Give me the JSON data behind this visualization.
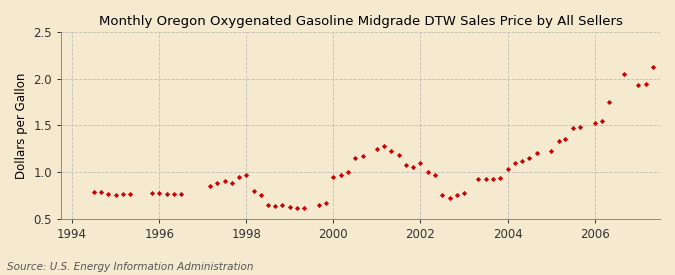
{
  "title": "Monthly Oregon Oxygenated Gasoline Midgrade DTW Sales Price by All Sellers",
  "ylabel": "Dollars per Gallon",
  "source": "Source: U.S. Energy Information Administration",
  "xlim": [
    1993.75,
    2007.5
  ],
  "ylim": [
    0.5,
    2.5
  ],
  "yticks": [
    0.5,
    1.0,
    1.5,
    2.0,
    2.5
  ],
  "xticks": [
    1994,
    1996,
    1998,
    2000,
    2002,
    2004,
    2006
  ],
  "background_color": "#f5e9d0",
  "plot_bg_color": "#f5e9d0",
  "marker_color": "#cc0000",
  "grid_color": "#aaaaaa",
  "data_points": [
    [
      1994.5,
      0.79
    ],
    [
      1994.67,
      0.79
    ],
    [
      1994.83,
      0.77
    ],
    [
      1995.0,
      0.75
    ],
    [
      1995.17,
      0.76
    ],
    [
      1995.33,
      0.77
    ],
    [
      1995.83,
      0.78
    ],
    [
      1996.0,
      0.78
    ],
    [
      1996.17,
      0.77
    ],
    [
      1996.33,
      0.76
    ],
    [
      1996.5,
      0.76
    ],
    [
      1997.17,
      0.85
    ],
    [
      1997.33,
      0.88
    ],
    [
      1997.5,
      0.9
    ],
    [
      1997.67,
      0.88
    ],
    [
      1997.83,
      0.95
    ],
    [
      1998.0,
      0.97
    ],
    [
      1998.17,
      0.8
    ],
    [
      1998.33,
      0.75
    ],
    [
      1998.5,
      0.65
    ],
    [
      1998.67,
      0.64
    ],
    [
      1998.83,
      0.65
    ],
    [
      1999.0,
      0.63
    ],
    [
      1999.17,
      0.62
    ],
    [
      1999.33,
      0.61
    ],
    [
      1999.67,
      0.65
    ],
    [
      1999.83,
      0.67
    ],
    [
      2000.0,
      0.95
    ],
    [
      2000.17,
      0.97
    ],
    [
      2000.33,
      1.0
    ],
    [
      2000.5,
      1.15
    ],
    [
      2000.67,
      1.17
    ],
    [
      2001.0,
      1.25
    ],
    [
      2001.17,
      1.28
    ],
    [
      2001.33,
      1.22
    ],
    [
      2001.5,
      1.18
    ],
    [
      2001.67,
      1.08
    ],
    [
      2001.83,
      1.05
    ],
    [
      2002.0,
      1.1
    ],
    [
      2002.17,
      1.0
    ],
    [
      2002.33,
      0.97
    ],
    [
      2002.5,
      0.75
    ],
    [
      2002.67,
      0.72
    ],
    [
      2002.83,
      0.75
    ],
    [
      2003.0,
      0.78
    ],
    [
      2003.33,
      0.92
    ],
    [
      2003.5,
      0.93
    ],
    [
      2003.67,
      0.93
    ],
    [
      2003.83,
      0.94
    ],
    [
      2004.0,
      1.03
    ],
    [
      2004.17,
      1.1
    ],
    [
      2004.33,
      1.12
    ],
    [
      2004.5,
      1.15
    ],
    [
      2004.67,
      1.2
    ],
    [
      2005.0,
      1.22
    ],
    [
      2005.17,
      1.33
    ],
    [
      2005.33,
      1.35
    ],
    [
      2005.5,
      1.47
    ],
    [
      2005.67,
      1.48
    ],
    [
      2006.0,
      1.53
    ],
    [
      2006.17,
      1.55
    ],
    [
      2006.33,
      1.75
    ],
    [
      2006.67,
      2.05
    ],
    [
      2007.0,
      1.93
    ],
    [
      2007.17,
      1.94
    ],
    [
      2007.33,
      2.12
    ]
  ]
}
